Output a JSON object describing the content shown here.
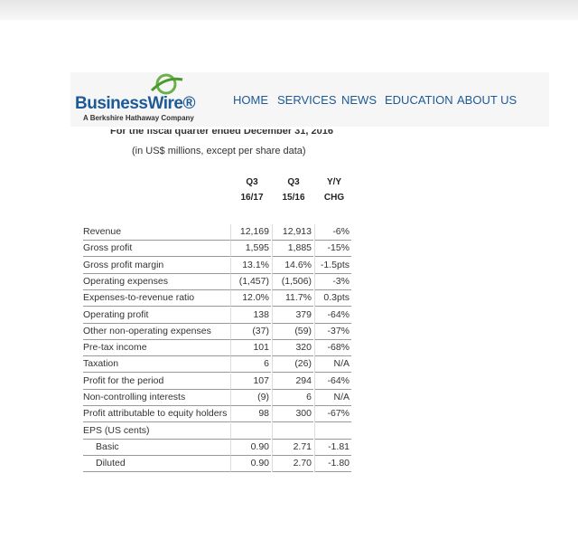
{
  "header": {
    "logo": {
      "name": "BusinessWire®",
      "tagline": "A Berkshire Hathaway Company"
    },
    "nav": [
      "HOME",
      "SERVICES",
      "NEWS",
      "EDUCATION",
      "ABOUT US"
    ]
  },
  "content": {
    "period": "For the fiscal quarter ended December 31, 2016",
    "units": "(in US$ millions, except per share data)",
    "table": {
      "columns": [
        [
          "Q3",
          "16/17"
        ],
        [
          "Q3",
          "15/16"
        ],
        [
          "Y/Y",
          "CHG"
        ]
      ],
      "rows": [
        [
          "Revenue",
          "12,169",
          "12,913",
          "-6%"
        ],
        [
          "Gross profit",
          "1,595",
          "1,885",
          "-15%"
        ],
        [
          "Gross profit margin",
          "13.1%",
          "14.6%",
          "-1.5pts"
        ],
        [
          "Operating expenses",
          "(1,457)",
          "(1,506)",
          "-3%"
        ],
        [
          "Expenses-to-revenue ratio",
          "12.0%",
          "11.7%",
          "0.3pts"
        ],
        [
          "Operating profit",
          "138",
          "379",
          "-64%"
        ],
        [
          "Other non-operating expenses",
          "(37)",
          "(59)",
          "-37%"
        ],
        [
          "Pre-tax income",
          "101",
          "320",
          "-68%"
        ],
        [
          "Taxation",
          "6",
          "(26)",
          "N/A"
        ],
        [
          "Profit for the period",
          "107",
          "294",
          "-64%"
        ],
        [
          "Non-controlling interests",
          "(9)",
          "6",
          "N/A"
        ],
        [
          "Profit attributable to equity holders",
          "98",
          "300",
          "-67%"
        ],
        [
          "EPS (US cents)"
        ],
        [
          "Basic",
          "0.90",
          "2.71",
          "-1.81"
        ],
        [
          "Diluted",
          "0.90",
          "2.70",
          "-1.80"
        ]
      ]
    }
  }
}
